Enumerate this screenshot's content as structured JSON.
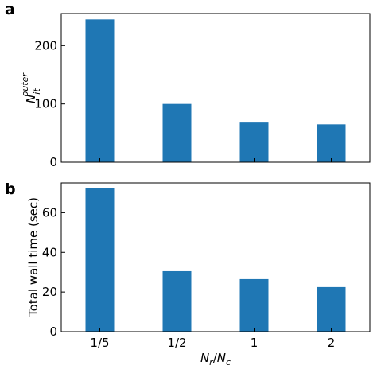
{
  "bar_color": "#1f77b4",
  "chart_data": [
    {
      "type": "bar",
      "panel_label": "a",
      "categories": [
        "1/5",
        "1/2",
        "1",
        "2"
      ],
      "values": [
        245,
        100,
        68,
        65
      ],
      "ylim": [
        0,
        255
      ],
      "yticks": [
        0,
        100,
        200
      ],
      "ylabel_main": "N",
      "ylabel_sup": "outer",
      "ylabel_sub": "it",
      "xlabel": "",
      "show_xtick_labels": false,
      "grid": false,
      "legend": "none"
    },
    {
      "type": "bar",
      "panel_label": "b",
      "categories": [
        "1/5",
        "1/2",
        "1",
        "2"
      ],
      "values": [
        72.5,
        30.5,
        26.5,
        22.5
      ],
      "ylim": [
        0,
        75
      ],
      "yticks": [
        0,
        20,
        40,
        60
      ],
      "ylabel": "Total wall time (sec)",
      "xlabel_n1": "N",
      "xlabel_n1_sub": "r",
      "xlabel_sep": "/",
      "xlabel_n2": "N",
      "xlabel_n2_sub": "c",
      "show_xtick_labels": true,
      "grid": false,
      "legend": "none"
    }
  ]
}
